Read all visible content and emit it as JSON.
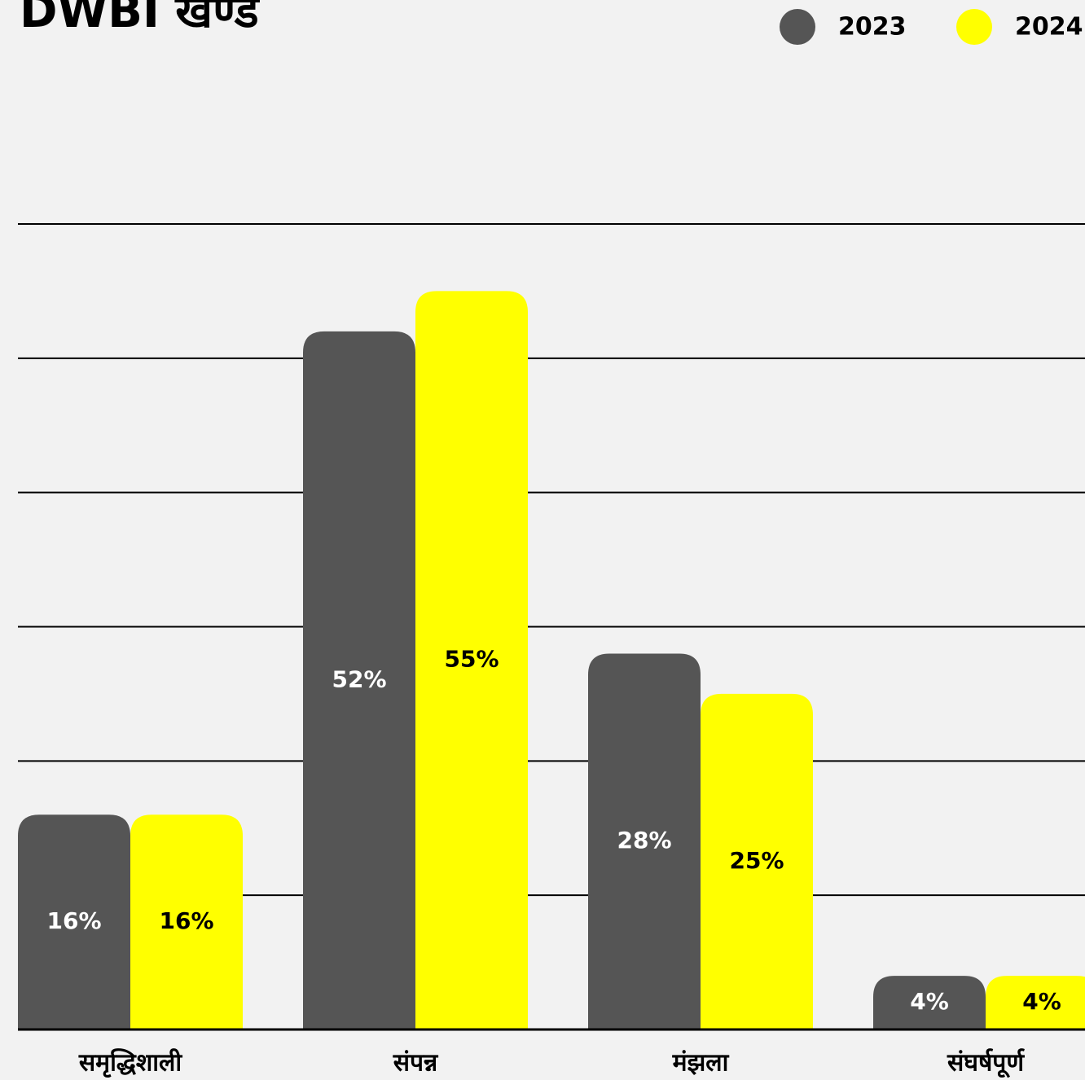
{
  "chart_data": {
    "type": "bar",
    "title": "DWBI खण्ड",
    "categories": [
      "समृद्धिशाली",
      "संपन्न",
      "मंझला",
      "संघर्षपूर्ण"
    ],
    "series": [
      {
        "name": "2023",
        "color": "#555555",
        "values": [
          16,
          52,
          28,
          4
        ],
        "value_labels": [
          "16%",
          "52%",
          "28%",
          "4%"
        ]
      },
      {
        "name": "2024",
        "color": "#ffff00",
        "values": [
          16,
          55,
          25,
          4
        ],
        "value_labels": [
          "16%",
          "55%",
          "25%",
          "4%"
        ]
      }
    ],
    "ylim": [
      0,
      60
    ],
    "yticks": [
      0,
      10,
      20,
      30,
      40,
      50,
      60
    ],
    "grid": true,
    "legend": "top-right"
  }
}
